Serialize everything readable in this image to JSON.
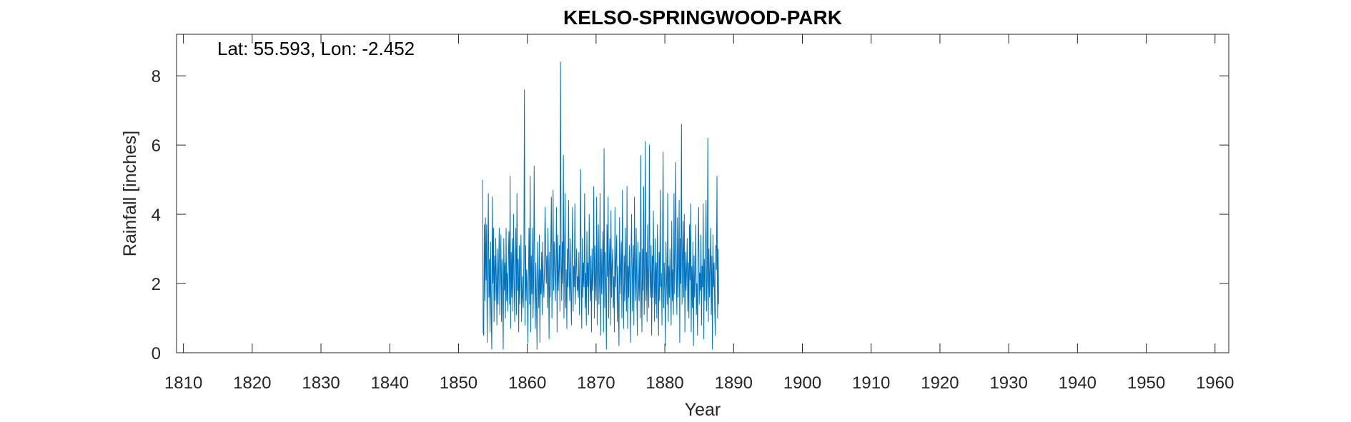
{
  "chart_data": {
    "type": "line",
    "title": "KELSO-SPRINGWOOD-PARK",
    "annotation": "Lat: 55.593, Lon: -2.452",
    "xlabel": "Year",
    "ylabel": "Rainfall [inches]",
    "xlim": [
      1809,
      1962
    ],
    "ylim": [
      0,
      9.2
    ],
    "xticks": [
      1810,
      1820,
      1830,
      1840,
      1850,
      1860,
      1870,
      1880,
      1890,
      1900,
      1910,
      1920,
      1930,
      1940,
      1950,
      1960
    ],
    "yticks": [
      0,
      2,
      4,
      6,
      8
    ],
    "grid": false,
    "series": [
      {
        "color": "#0072BD",
        "x_start": 1853.5,
        "x_step": 0.08333,
        "values": [
          5.0,
          0.6,
          0.5,
          3.7,
          1.5,
          3.9,
          2.1,
          3.7,
          0.3,
          2.4,
          4.6,
          1.6,
          2.7,
          0.6,
          3.2,
          1.2,
          0.1,
          4.5,
          2.0,
          3.6,
          0.9,
          2.8,
          1.5,
          3.3,
          2.1,
          0.8,
          3.0,
          1.4,
          2.5,
          3.6,
          1.1,
          2.2,
          3.4,
          0.9,
          2.7,
          1.6,
          0.1,
          3.3,
          1.8,
          2.6,
          1.0,
          3.6,
          1.5,
          2.3,
          1.2,
          2.8,
          3.5,
          1.4,
          5.1,
          0.7,
          2.9,
          1.6,
          3.3,
          1.2,
          4.0,
          2.2,
          0.9,
          2.6,
          3.6,
          1.1,
          4.6,
          1.8,
          2.7,
          0.6,
          3.1,
          1.4,
          2.4,
          3.4,
          0.9,
          2.2,
          1.6,
          1.3,
          2.7,
          7.6,
          0.8,
          3.1,
          1.5,
          2.4,
          1.9,
          0.3,
          2.2,
          3.6,
          1.4,
          5.1,
          0.6,
          2.8,
          1.7,
          3.6,
          1.0,
          2.0,
          5.4,
          2.3,
          0.7,
          2.6,
          1.5,
          0.1,
          3.2,
          2.1,
          1.3,
          3.4,
          0.3,
          2.4,
          1.7,
          2.9,
          1.1,
          3.2,
          2.0,
          1.6,
          2.5,
          4.2,
          3.1,
          2.0,
          2.8,
          1.3,
          3.6,
          2.4,
          0.4,
          2.9,
          1.6,
          3.1,
          4.5,
          1.0,
          2.5,
          4.7,
          1.8,
          3.2,
          2.4,
          1.5,
          2.7,
          4.2,
          0.6,
          3.4,
          1.8,
          2.4,
          3.1,
          1.2,
          8.4,
          2.7,
          1.5,
          3.2,
          2.0,
          5.7,
          1.0,
          2.9,
          4.6,
          1.3,
          2.4,
          0.7,
          3.0,
          1.9,
          4.4,
          2.3,
          1.5,
          3.3,
          1.8,
          0.8,
          2.9,
          4.2,
          1.2,
          2.5,
          1.9,
          4.3,
          1.4,
          2.4,
          3.0,
          1.8,
          2.2,
          1.6,
          2.9,
          1.1,
          2.5,
          5.3,
          2.0,
          0.7,
          3.3,
          1.6,
          2.6,
          1.9,
          4.6,
          1.3,
          2.3,
          0.8,
          3.5,
          1.9,
          2.6,
          1.1,
          4.0,
          2.2,
          1.5,
          2.8,
          0.6,
          3.0,
          1.8,
          2.4,
          4.8,
          1.0,
          3.1,
          2.0,
          1.5,
          4.5,
          0.8,
          2.7,
          3.7,
          1.4,
          2.2,
          4.6,
          0.5,
          3.0,
          1.7,
          2.5,
          3.5,
          0.6,
          5.9,
          1.3,
          2.9,
          1.9,
          0.1,
          3.7,
          2.2,
          4.5,
          1.0,
          2.6,
          3.3,
          0.8,
          4.1,
          1.6,
          2.5,
          3.0,
          1.3,
          2.2,
          0.6,
          4.2,
          1.9,
          2.7,
          3.4,
          0.9,
          2.5,
          1.4,
          0.2,
          3.9,
          1.7,
          2.4,
          3.2,
          1.0,
          4.7,
          2.1,
          0.7,
          2.8,
          1.5,
          3.6,
          2.3,
          1.2,
          4.8,
          0.7,
          2.5,
          1.6,
          3.1,
          2.0,
          0.3,
          2.8,
          4.0,
          1.2,
          2.4,
          3.1,
          0.8,
          4.5,
          2.2,
          1.5,
          3.6,
          1.8,
          0.5,
          3.2,
          2.1,
          1.5,
          2.9,
          1.0,
          5.7,
          2.0,
          0.6,
          3.0,
          1.8,
          4.8,
          1.1,
          2.5,
          6.1,
          1.5,
          2.9,
          0.9,
          3.7,
          2.0,
          1.3,
          6.0,
          2.4,
          1.6,
          3.1,
          0.5,
          2.8,
          1.6,
          4.1,
          2.2,
          0.9,
          3.3,
          1.4,
          2.6,
          1.0,
          3.7,
          2.1,
          0.5,
          2.9,
          1.5,
          4.7,
          1.9,
          2.3,
          0.8,
          3.4,
          5.8,
          1.3,
          2.6,
          1.8,
          0.2,
          3.2,
          2.1,
          1.4,
          4.6,
          0.9,
          2.5,
          1.6,
          3.0,
          2.1,
          0.8,
          3.8,
          1.5,
          2.4,
          1.1,
          4.6,
          1.7,
          2.9,
          5.5,
          2.3,
          1.1,
          3.9,
          1.6,
          2.6,
          4.4,
          0.3,
          3.3,
          2.0,
          6.6,
          1.4,
          2.7,
          3.8,
          1.6,
          4.0,
          0.6,
          2.9,
          1.8,
          2.4,
          3.3,
          1.2,
          2.6,
          1.0,
          3.7,
          2.1,
          4.3,
          0.6,
          2.5,
          1.3,
          3.2,
          0.2,
          2.8,
          1.6,
          2.4,
          3.7,
          1.1,
          2.0,
          0.5,
          3.0,
          4.2,
          1.4,
          2.3,
          1.8,
          3.4,
          0.8,
          2.5,
          1.9,
          4.3,
          0.4,
          2.7,
          1.5,
          3.1,
          4.4,
          1.2,
          2.2,
          6.2,
          0.9,
          3.0,
          1.6,
          2.5,
          3.6,
          1.1,
          2.8,
          0.1,
          3.4,
          1.9,
          2.6,
          1.3,
          0.5,
          3.1,
          2.4,
          5.1,
          1.0,
          3.0,
          1.4
        ]
      }
    ]
  }
}
